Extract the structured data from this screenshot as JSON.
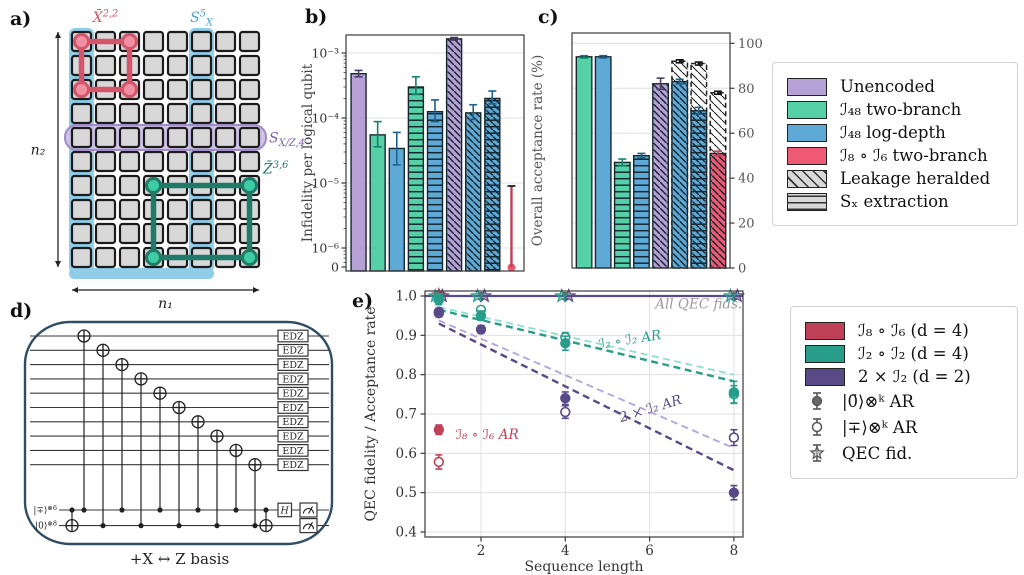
{
  "figure": {
    "panel_labels": {
      "a": "a)",
      "b": "b)",
      "c": "c)",
      "d": "d)",
      "e": "e)"
    }
  },
  "colors": {
    "purple": "#b5a1d6",
    "green": "#56d0a7",
    "blue": "#5fa9d6",
    "red": "#ee5a73",
    "edge": "#16272f",
    "err_purple": "#4a3f63",
    "err_green": "#14806c",
    "err_blue": "#1f618c",
    "err_red": "#c04058",
    "teal_dark": "#279d8a",
    "teal_light": "#8be0cb",
    "purple_dark": "#584a86",
    "purple_light": "#b3a3dc",
    "red_dark": "#bf4158",
    "grid": "#e0e0e0",
    "spine": "#3a3a3a",
    "gray_text": "#9a9aa0",
    "circuit": "#2f4d63",
    "a_red": "#d4546a",
    "a_red_fill": "#ef91a3",
    "a_blue_band": "#8fcde9",
    "a_blue_label": "#4aa3cf",
    "a_purple_fill": "#cabde4",
    "a_purple_stroke": "#9f8cc9",
    "a_purple_label": "#7a5fae",
    "a_teal": "#1f7a68",
    "a_teal_fill": "#3ecda2",
    "a_square_fill": "#d8d8d8",
    "a_square_stroke": "#1b1b1b"
  },
  "panel_a": {
    "grid": {
      "cols": 8,
      "rows": 10
    },
    "blue_band_cols": [
      1,
      6
    ],
    "purple_band_row": 5,
    "labels": {
      "x_loop": {
        "parts": [
          {
            "t": "X̄"
          },
          {
            "t": "2,2",
            "pos": "sup"
          }
        ]
      },
      "sx_col": {
        "parts": [
          {
            "t": "S"
          },
          {
            "t": "5",
            "pos": "sup"
          },
          {
            "t": "X",
            "pos": "sub"
          }
        ]
      },
      "sxz_row": {
        "parts": [
          {
            "t": "S"
          },
          {
            "t": "X/Z,4",
            "pos": "sub"
          }
        ]
      },
      "z_loop": {
        "parts": [
          {
            "t": "Z̄"
          },
          {
            "t": "3,6",
            "pos": "sup"
          }
        ]
      },
      "n1": "n₁",
      "n2": "n₂"
    },
    "red_loop_corners": {
      "rows": [
        1,
        3
      ],
      "cols": [
        1,
        3
      ]
    },
    "teal_loop_corners": {
      "rows": [
        7,
        10
      ],
      "cols": [
        4,
        8
      ]
    }
  },
  "panel_d": {
    "caption": "+X ↔ Z basis",
    "n_data_wires": 10,
    "gate_label": "EDZ",
    "h_label": "H",
    "ancilla_labels": [
      {
        "base": "|∓⟩",
        "sup": "⊗6"
      },
      {
        "base": "|0⟩",
        "sup": "⊗8"
      }
    ]
  },
  "legend1": {
    "items": [
      {
        "swatch": "purple",
        "label": "Unencoded"
      },
      {
        "swatch": "green",
        "label": "ℐ₄₈ two-branch"
      },
      {
        "swatch": "blue",
        "label": "ℐ₄₈ log-depth"
      },
      {
        "swatch": "red",
        "label": "ℐ₈ ∘ ℐ₆ two-branch"
      },
      {
        "swatch": "hatch-diag",
        "label": "Leakage heralded"
      },
      {
        "swatch": "hatch-horiz",
        "label": "Sₓ extraction"
      }
    ]
  },
  "legend2": {
    "items": [
      {
        "swatch": "red_dark",
        "label": "ℐ₈ ∘ ℐ₆   (d = 4)"
      },
      {
        "swatch": "teal_dark",
        "label": "ℐ₂ ∘ ℐ₂   (d = 4)"
      },
      {
        "swatch": "purple_dark",
        "label": "2 × ℐ₂   (d = 2)"
      },
      {
        "marker": "filled-circle",
        "label": "|0̄⟩⊗ᵏ AR"
      },
      {
        "marker": "open-circle",
        "label": "|∓⟩⊗ᵏ AR"
      },
      {
        "marker": "star",
        "label": "QEC fid."
      }
    ]
  },
  "chart_data": [
    {
      "id": "b",
      "type": "bar",
      "scale": "symlog",
      "ylabel": "Infidelity per logical qubit",
      "yticks": [
        {
          "label": "10⁻³",
          "value": 0.001
        },
        {
          "label": "10⁻⁴",
          "value": 0.0001
        },
        {
          "label": "10⁻⁵",
          "value": 1e-05
        },
        {
          "label": "10⁻⁶",
          "value": 1e-06
        },
        {
          "label": "0",
          "value": 0
        }
      ],
      "bars": [
        {
          "series": "Unencoded",
          "color": "purple",
          "hatch": "none",
          "value": 0.00048,
          "err_lo": 0.00043,
          "err_hi": 0.00054
        },
        {
          "series": "I48 two-branch",
          "color": "green",
          "hatch": "none",
          "value": 5.5e-05,
          "err_lo": 3.6e-05,
          "err_hi": 8.8e-05
        },
        {
          "series": "I48 log-depth",
          "color": "blue",
          "hatch": "none",
          "value": 3.4e-05,
          "err_lo": 1.9e-05,
          "err_hi": 6e-05
        },
        {
          "series": "I48 two-branch, SX extraction",
          "color": "green",
          "hatch": "horiz",
          "value": 0.0003,
          "err_lo": 0.00023,
          "err_hi": 0.00043
        },
        {
          "series": "I48 log-depth, SX extraction",
          "color": "blue",
          "hatch": "horiz",
          "value": 0.000125,
          "err_lo": 8.8e-05,
          "err_hi": 0.00019
        },
        {
          "series": "Unencoded, leakage heralded",
          "color": "purple",
          "hatch": "diag",
          "value": 0.00165,
          "err_lo": 0.00158,
          "err_hi": 0.00173
        },
        {
          "series": "I48 log-depth, leakage heralded",
          "color": "blue",
          "hatch": "diag",
          "value": 0.00012,
          "err_lo": 9.5e-05,
          "err_hi": 0.00016
        },
        {
          "series": "I48 log-depth, SX + leakage heralded",
          "color": "blue",
          "hatch": "horiz+diag",
          "value": 0.0002,
          "err_lo": 0.000165,
          "err_hi": 0.00026
        },
        {
          "series": "I8∘I6 two-branch",
          "color": "red",
          "hatch": "none",
          "value": 0,
          "err_lo": 0,
          "err_hi": 9e-06
        }
      ]
    },
    {
      "id": "c",
      "type": "bar",
      "scale": "linear",
      "ylabel": "Overall acceptance rate (%)",
      "yticks": [
        0,
        20,
        40,
        60,
        80,
        100
      ],
      "ylim": [
        0,
        104.6
      ],
      "bars": [
        {
          "series": "I48 two-branch",
          "color": "green",
          "hatch": "none",
          "value": 94,
          "err_lo": 93.5,
          "err_hi": 94.5
        },
        {
          "series": "I48 log-depth",
          "color": "blue",
          "hatch": "none",
          "value": 94,
          "err_lo": 93.5,
          "err_hi": 94.5
        },
        {
          "series": "I48 two-branch, SX extraction",
          "color": "green",
          "hatch": "horiz",
          "value": 47,
          "err_lo": 45.5,
          "err_hi": 48.5
        },
        {
          "series": "I48 log-depth, SX extraction",
          "color": "blue",
          "hatch": "horiz",
          "value": 50,
          "err_lo": 49,
          "err_hi": 51
        },
        {
          "series": "Unencoded, leakage heralded",
          "color": "purple",
          "hatch": "diag",
          "value": 82,
          "err_lo": 79.5,
          "err_hi": 84.5
        },
        {
          "series": "I48 log-depth, leakage heralded",
          "color": "blue",
          "hatch": "diag",
          "value": 83,
          "err_lo": 82,
          "err_hi": 84,
          "heralded": 92
        },
        {
          "series": "I48 log-depth, SX + leakage",
          "color": "blue",
          "hatch": "horiz+diag",
          "value": 70,
          "err_lo": 68.5,
          "err_hi": 71.5,
          "heralded": 91
        },
        {
          "series": "I8∘I6 two-branch, leakage",
          "color": "red",
          "hatch": "diag",
          "value": 51,
          "err_lo": 50,
          "err_hi": 52,
          "heralded": 78
        }
      ]
    },
    {
      "id": "e",
      "type": "scatter",
      "xlabel": "Sequence length",
      "ylabel": "QEC fidelity / Acceptance rate",
      "xticks": [
        2,
        4,
        6,
        8
      ],
      "yticks": [
        0.4,
        0.5,
        0.6,
        0.7,
        0.8,
        0.9,
        1.0
      ],
      "qec_line": {
        "y": 1.0,
        "color": "purple_dark"
      },
      "star_x": [
        1,
        2,
        4,
        8
      ],
      "trend_lines": [
        {
          "color": "teal_light",
          "from": [
            1,
            0.972
          ],
          "to": [
            8,
            0.8
          ],
          "width": 1.8
        },
        {
          "color": "teal_dark",
          "from": [
            1,
            0.965
          ],
          "to": [
            8,
            0.783
          ],
          "width": 2.4
        },
        {
          "color": "purple_light",
          "from": [
            1,
            0.938
          ],
          "to": [
            8,
            0.613
          ],
          "width": 1.8
        },
        {
          "color": "purple_dark",
          "from": [
            1,
            0.93
          ],
          "to": [
            8,
            0.557
          ],
          "width": 2.4
        }
      ],
      "points": [
        {
          "series": "teal open |∓⟩ AR",
          "color": "teal_dark",
          "fill": false,
          "data": [
            [
              1,
              0.995
            ],
            [
              2,
              0.965
            ],
            [
              4,
              0.895
            ],
            [
              8,
              0.75
            ]
          ],
          "err": [
            0.008,
            0.008,
            0.012,
            0.022
          ]
        },
        {
          "series": "teal filled |0⟩ AR",
          "color": "teal_dark",
          "fill": true,
          "data": [
            [
              1,
              0.99
            ],
            [
              2,
              0.95
            ],
            [
              4,
              0.88
            ],
            [
              8,
              0.755
            ]
          ],
          "err": [
            0.012,
            0.012,
            0.018,
            0.028
          ]
        },
        {
          "series": "purple open |∓⟩ AR",
          "color": "purple_dark",
          "fill": false,
          "data": [
            [
              1,
              0.956
            ],
            [
              4,
              0.705
            ],
            [
              8,
              0.64
            ]
          ],
          "err": [
            0.008,
            0.016,
            0.02
          ]
        },
        {
          "series": "purple filled |0⟩ AR",
          "color": "purple_dark",
          "fill": true,
          "data": [
            [
              1,
              0.96
            ],
            [
              2,
              0.915
            ],
            [
              4,
              0.74
            ],
            [
              8,
              0.5
            ]
          ],
          "err": [
            0.008,
            0.01,
            0.016,
            0.018
          ]
        },
        {
          "series": "red open |∓⟩ AR",
          "color": "red_dark",
          "fill": false,
          "data": [
            [
              1,
              0.578
            ]
          ],
          "err": [
            0.018
          ]
        },
        {
          "series": "red filled |0⟩ AR",
          "color": "red_dark",
          "fill": true,
          "data": [
            [
              1,
              0.66
            ]
          ],
          "err": [
            0.012
          ]
        }
      ],
      "annotations": [
        {
          "text": "All QEC fids.",
          "color": "gray_text",
          "x": 8.2,
          "y": 0.968,
          "rotate": 0,
          "anchor": "end"
        },
        {
          "text": "ℐ₂ ∘ ℐ₂ AR",
          "color": "teal_dark",
          "x": 5.55,
          "y": 0.878,
          "rotate": -9,
          "anchor": "middle"
        },
        {
          "text": "2 × ℐ₂ AR",
          "color": "purple_dark",
          "x": 6.05,
          "y": 0.703,
          "rotate": -17,
          "anchor": "middle"
        },
        {
          "text": "ℐ₈ ∘ ℐ₆ AR",
          "color": "red_dark",
          "x": 1.4,
          "y": 0.636,
          "rotate": 0,
          "anchor": "start"
        }
      ]
    }
  ]
}
